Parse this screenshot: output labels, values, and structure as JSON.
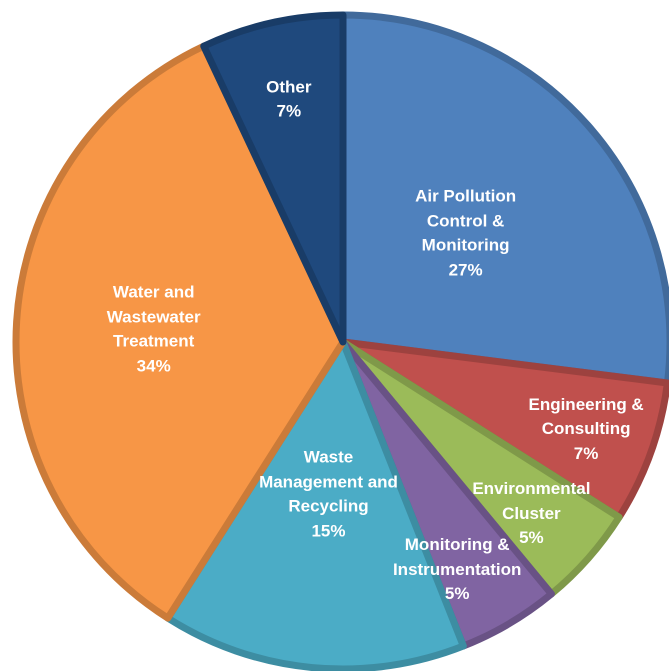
{
  "chart_data": {
    "type": "pie",
    "title": "",
    "start_angle_deg": 0,
    "direction": "clockwise",
    "slices": [
      {
        "label_lines": [
          "Air Pollution",
          "Control &",
          "Monitoring"
        ],
        "value": 27,
        "value_label": "27%",
        "color": "#4f81bd"
      },
      {
        "label_lines": [
          "Engineering &",
          "Consulting"
        ],
        "value": 7,
        "value_label": "7%",
        "color": "#c0504d"
      },
      {
        "label_lines": [
          "Environmental",
          "Cluster"
        ],
        "value": 5,
        "value_label": "5%",
        "color": "#9bbb59"
      },
      {
        "label_lines": [
          "Monitoring &",
          "Instrumentation"
        ],
        "value": 5,
        "value_label": "5%",
        "color": "#8064a2"
      },
      {
        "label_lines": [
          "Waste",
          "Management and",
          "Recycling"
        ],
        "value": 15,
        "value_label": "15%",
        "color": "#4bacc6"
      },
      {
        "label_lines": [
          "Water and",
          "Wastewater",
          "Treatment"
        ],
        "value": 34,
        "value_label": "34%",
        "color": "#f79646"
      },
      {
        "label_lines": [
          "Other"
        ],
        "value": 7,
        "value_label": "7%",
        "color": "#1f497d"
      }
    ]
  }
}
